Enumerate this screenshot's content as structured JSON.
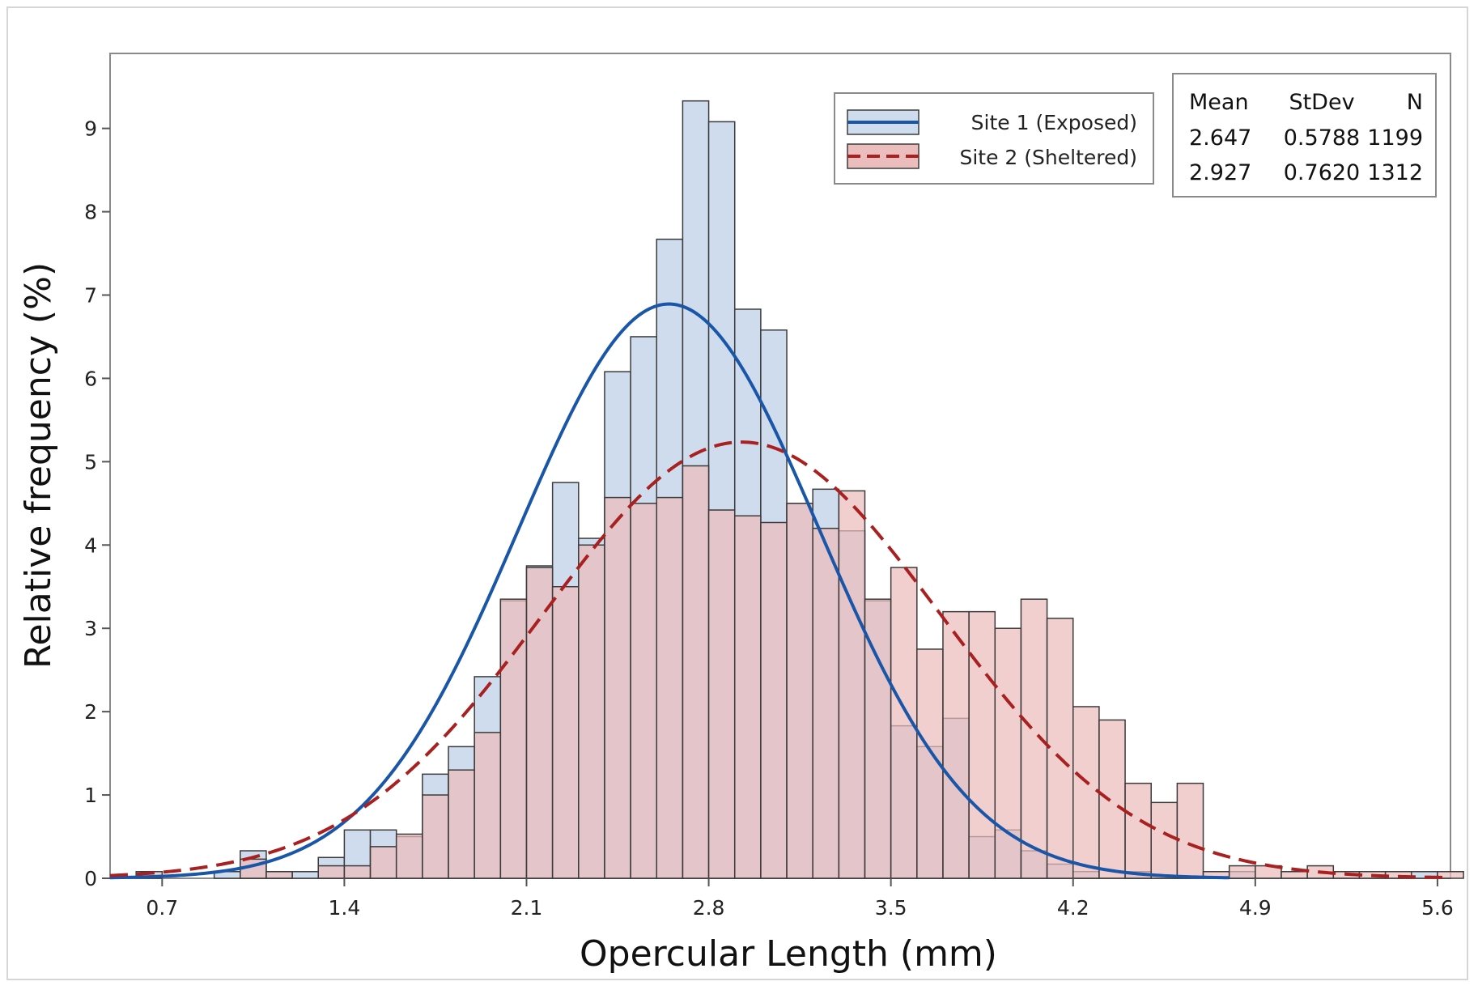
{
  "chart_data": {
    "type": "histogram",
    "xlabel": "Opercular Length (mm)",
    "ylabel": "Relative frequency (%)",
    "xlim": [
      0.5,
      5.65
    ],
    "ylim": [
      0,
      9.9
    ],
    "x_ticks": [
      0.7,
      1.4,
      2.1,
      2.8,
      3.5,
      4.2,
      4.9,
      5.6
    ],
    "x_tick_labels": [
      "0.7",
      "1.4",
      "2.1",
      "2.8",
      "3.5",
      "4.2",
      "4.9",
      "5.6"
    ],
    "y_ticks": [
      0,
      1,
      2,
      3,
      4,
      5,
      6,
      7,
      8,
      9
    ],
    "y_tick_labels": [
      "0",
      "1",
      "2",
      "3",
      "4",
      "5",
      "6",
      "7",
      "8",
      "9"
    ],
    "bin_start": 0.5,
    "bin_width": 0.1,
    "series": [
      {
        "name": "Site 1 (Exposed)",
        "fill": "#cfdcee",
        "line_color": "#1a56a8",
        "line_style": "solid",
        "mean": 2.647,
        "stdev": 0.5788,
        "n": 1199,
        "values": [
          0,
          0,
          0,
          0,
          0.08,
          0.33,
          0.08,
          0.08,
          0.25,
          0.58,
          0.58,
          0.5,
          1.25,
          1.58,
          2.42,
          3.33,
          3.75,
          4.75,
          4.08,
          6.08,
          6.5,
          7.67,
          9.33,
          9.08,
          6.83,
          6.58,
          4.5,
          4.67,
          4.17,
          3.33,
          1.83,
          1.58,
          1.92,
          0.5,
          0.58,
          0.33,
          0.17,
          0.08,
          0,
          0.08,
          0,
          0,
          0,
          0.08,
          0,
          0,
          0,
          0,
          0,
          0,
          0.08,
          0
        ]
      },
      {
        "name": "Site 2 (Sheltered)",
        "fill": "#ebbdbd",
        "line_color": "#a82020",
        "line_style": "dashed",
        "mean": 2.927,
        "stdev": 0.762,
        "n": 1312,
        "values": [
          0,
          0.08,
          0,
          0,
          0,
          0.23,
          0.08,
          0,
          0.15,
          0.15,
          0.38,
          0.53,
          1.0,
          1.3,
          1.75,
          3.35,
          3.73,
          3.5,
          4.0,
          4.57,
          4.5,
          4.57,
          4.95,
          4.42,
          4.35,
          4.27,
          4.5,
          4.2,
          4.65,
          3.35,
          3.73,
          2.75,
          3.2,
          3.2,
          3.0,
          3.35,
          3.12,
          2.06,
          1.9,
          1.14,
          0.91,
          1.14,
          0.08,
          0.15,
          0.15,
          0.08,
          0.15,
          0.08,
          0.08,
          0.08,
          0,
          0.08
        ]
      }
    ],
    "stats_table": {
      "headers": [
        "Mean",
        "StDev",
        "N"
      ],
      "rows": [
        [
          "2.647",
          "0.5788",
          "1199"
        ],
        [
          "2.927",
          "0.7620",
          "1312"
        ]
      ]
    },
    "legend_position": "top-right",
    "grid": false
  }
}
